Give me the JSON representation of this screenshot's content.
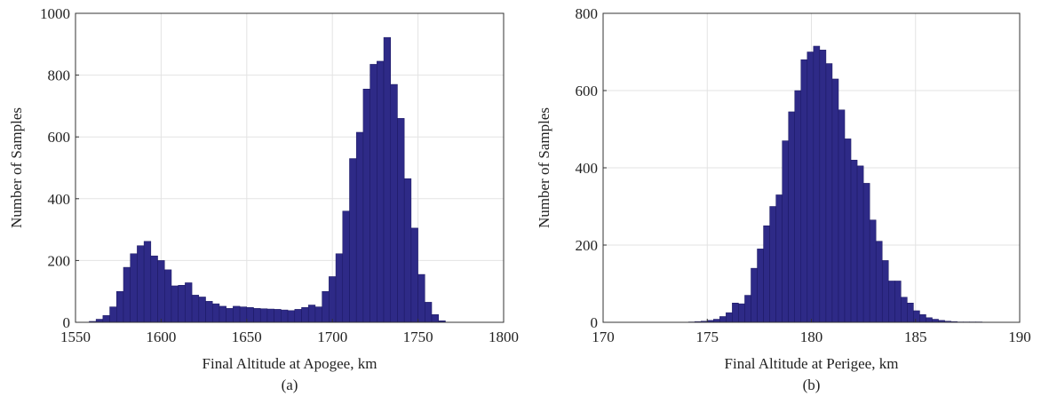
{
  "chart_data": [
    {
      "type": "bar",
      "subtype": "histogram",
      "caption": "(a)",
      "xlabel": "Final Altitude at Apogee, km",
      "ylabel": "Number of Samples",
      "xlim": [
        1550,
        1800
      ],
      "ylim": [
        0,
        1000
      ],
      "xticks": [
        1550,
        1600,
        1650,
        1700,
        1750,
        1800
      ],
      "yticks": [
        0,
        200,
        400,
        600,
        800,
        1000
      ],
      "grid": true,
      "bar_color": "#2e2a87",
      "bin_width": 4,
      "bin_starts": [
        1558,
        1562,
        1566,
        1570,
        1574,
        1578,
        1582,
        1586,
        1590,
        1594,
        1598,
        1602,
        1606,
        1610,
        1614,
        1618,
        1622,
        1626,
        1630,
        1634,
        1638,
        1642,
        1646,
        1650,
        1654,
        1658,
        1662,
        1666,
        1670,
        1674,
        1678,
        1682,
        1686,
        1690,
        1694,
        1698,
        1702,
        1706,
        1710,
        1714,
        1718,
        1722,
        1726,
        1730,
        1734,
        1738,
        1742,
        1746,
        1750,
        1754,
        1758,
        1762
      ],
      "values": [
        3,
        10,
        22,
        50,
        100,
        178,
        222,
        248,
        262,
        215,
        200,
        170,
        118,
        120,
        128,
        88,
        82,
        68,
        60,
        52,
        45,
        52,
        50,
        48,
        45,
        44,
        43,
        42,
        40,
        38,
        42,
        48,
        56,
        50,
        100,
        148,
        222,
        360,
        530,
        615,
        755,
        835,
        845,
        922,
        770,
        660,
        465,
        305,
        155,
        65,
        25,
        5
      ]
    },
    {
      "type": "bar",
      "subtype": "histogram",
      "caption": "(b)",
      "xlabel": "Final Altitude at Perigee, km",
      "ylabel": "Number of Samples",
      "xlim": [
        170,
        190
      ],
      "ylim": [
        0,
        800
      ],
      "xticks": [
        170,
        175,
        180,
        185,
        190
      ],
      "yticks": [
        0,
        200,
        400,
        600,
        800
      ],
      "grid": true,
      "bar_color": "#2e2a87",
      "bin_width": 0.3,
      "bin_starts": [
        174.1,
        174.4,
        174.7,
        175.0,
        175.3,
        175.6,
        175.9,
        176.2,
        176.5,
        176.8,
        177.1,
        177.4,
        177.7,
        178.0,
        178.3,
        178.6,
        178.9,
        179.2,
        179.5,
        179.8,
        180.1,
        180.4,
        180.7,
        181.0,
        181.3,
        181.6,
        181.9,
        182.2,
        182.5,
        182.8,
        183.1,
        183.4,
        183.7,
        184.0,
        184.3,
        184.6,
        184.9,
        185.2,
        185.5,
        185.8,
        186.1,
        186.4,
        186.7,
        187.0,
        187.3,
        187.6,
        187.9
      ],
      "values": [
        1,
        2,
        3,
        5,
        8,
        15,
        25,
        50,
        48,
        70,
        140,
        190,
        250,
        300,
        330,
        470,
        545,
        600,
        680,
        700,
        715,
        705,
        670,
        630,
        550,
        475,
        420,
        405,
        360,
        265,
        210,
        160,
        107,
        107,
        65,
        50,
        30,
        20,
        12,
        8,
        5,
        3,
        2,
        1,
        1,
        1,
        1
      ]
    }
  ]
}
